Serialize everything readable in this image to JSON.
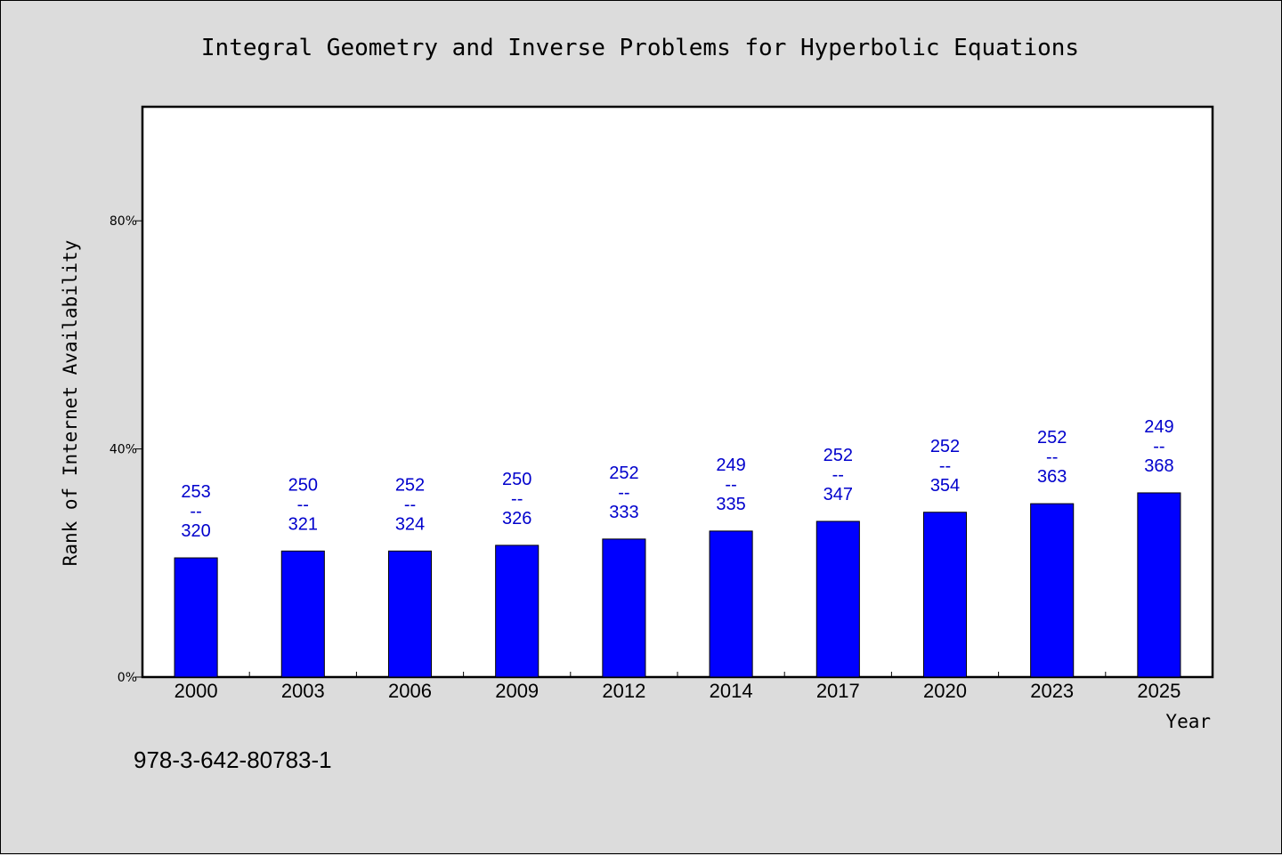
{
  "chart_data": {
    "type": "bar",
    "title": "Integral Geometry and Inverse Problems for Hyperbolic Equations",
    "xlabel": "Year",
    "ylabel": "Rank of Internet Availability",
    "categories": [
      "2000",
      "2003",
      "2006",
      "2009",
      "2012",
      "2014",
      "2017",
      "2020",
      "2023",
      "2025"
    ],
    "values": [
      20.9,
      22.1,
      22.1,
      23.1,
      24.2,
      25.6,
      27.3,
      28.9,
      30.4,
      32.3
    ],
    "data_labels": [
      "253\n--\n320",
      "250\n--\n321",
      "252\n--\n324",
      "250\n--\n326",
      "252\n--\n333",
      "249\n--\n335",
      "252\n--\n347",
      "252\n--\n354",
      "252\n--\n363",
      "249\n--\n368"
    ],
    "y_ticks": [
      {
        "value": 0,
        "label": "0%"
      },
      {
        "value": 40,
        "label": "40%"
      },
      {
        "value": 80,
        "label": "80%"
      }
    ],
    "ylim": [
      0,
      100
    ],
    "grid": false,
    "bar_color": "#0000ff",
    "label_color": "#0000cc"
  },
  "footer": {
    "isbn": "978-3-642-80783-1"
  },
  "colors": {
    "background": "#dcdcdc",
    "plot_background": "#ffffff"
  }
}
